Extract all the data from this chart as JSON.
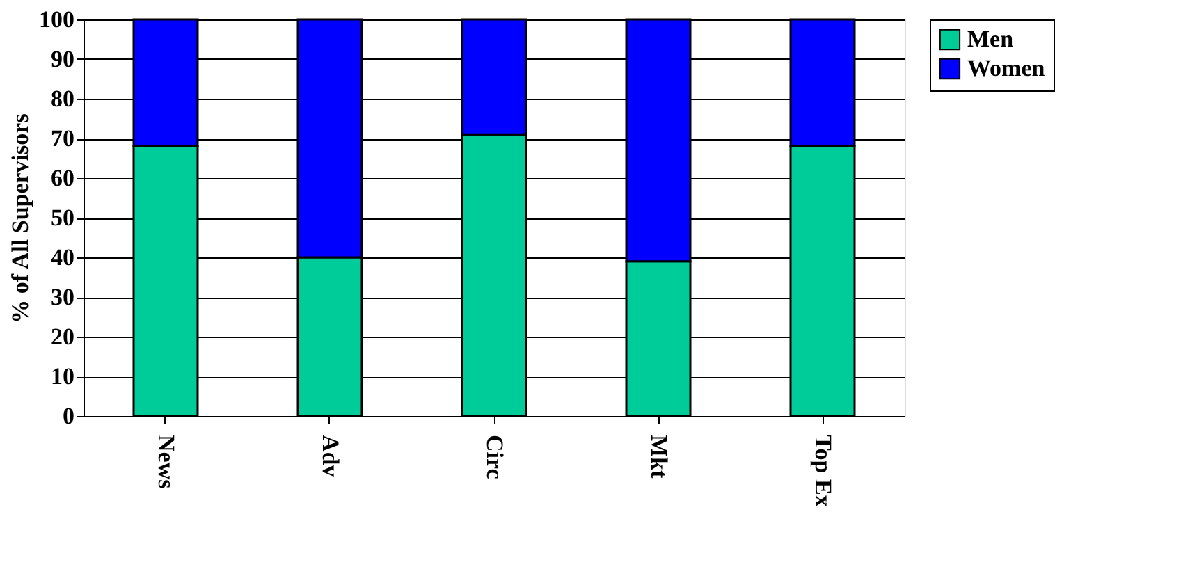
{
  "chart_data": {
    "type": "bar",
    "stacked": true,
    "ylabel": "% of All Supervisors",
    "categories": [
      "News",
      "Adv",
      "Circ",
      "Mkt",
      "Top Ex"
    ],
    "series": [
      {
        "name": "Men",
        "color": "#00cc99",
        "values": [
          68,
          40,
          71,
          39,
          68
        ]
      },
      {
        "name": "Women",
        "color": "#0000ff",
        "values": [
          32,
          60,
          29,
          61,
          32
        ]
      }
    ],
    "ylim": [
      0,
      100
    ],
    "yticks": [
      0,
      10,
      20,
      30,
      40,
      50,
      60,
      70,
      80,
      90,
      100
    ],
    "grid": "y",
    "legend": "right"
  }
}
